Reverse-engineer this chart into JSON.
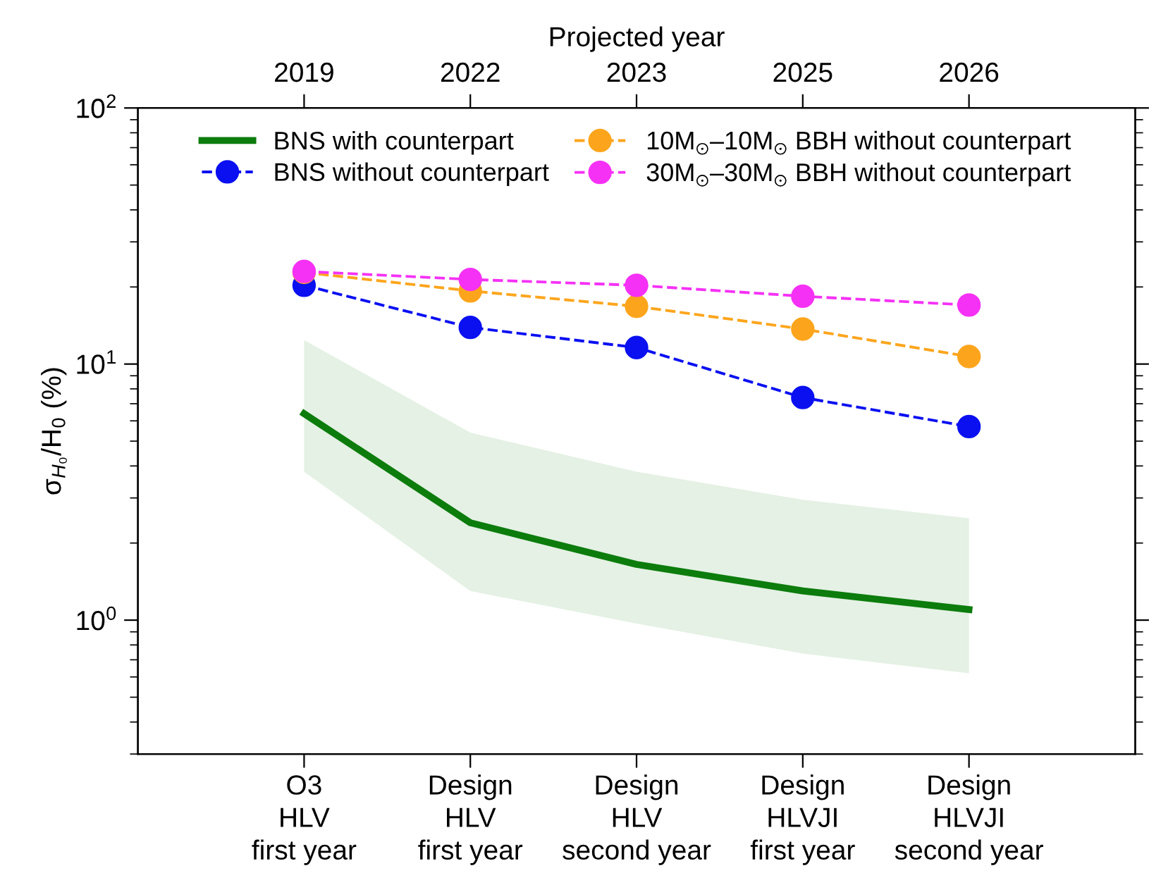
{
  "chart_data": {
    "type": "line",
    "categories": [
      "O3\nHLV\nfirst year",
      "Design\nHLV\nfirst year",
      "Design\nHLV\nsecond year",
      "Design\nHLVJI\nfirst year",
      "Design\nHLVJI\nsecond year"
    ],
    "x2label": "Projected year",
    "annotations": [
      "2019",
      "2022",
      "2023",
      "2025",
      "2026"
    ],
    "ylabel": "σ$_{H₀}$/H$_{0}$ (%)",
    "log": "y",
    "ylim": [
      0.3,
      100
    ],
    "yticks": [
      {
        "value": 1,
        "label": "10$^{0}$"
      },
      {
        "value": 10,
        "label": "10$^{1}$"
      },
      {
        "value": 100,
        "label": "10$^{2}$"
      }
    ],
    "grid": false,
    "legend": "top",
    "series": [
      {
        "name": "BNS with counterpart",
        "color": "#0c7c0c",
        "marker": "none",
        "line_style": "solid",
        "values": [
          6.4,
          2.4,
          1.65,
          1.3,
          1.1
        ],
        "lower": [
          3.8,
          1.3,
          0.97,
          0.74,
          0.62
        ],
        "upper": [
          12.4,
          5.4,
          3.8,
          2.95,
          2.5
        ]
      },
      {
        "name": "BNS without counterpart",
        "color": "#0a10f0",
        "marker": "circle",
        "line_style": "dashed",
        "values": [
          20.3,
          13.9,
          11.6,
          7.4,
          5.7
        ]
      },
      {
        "name": "10M$_{⊙}$–10M$_{⊙}$ BBH without counterpart",
        "color": "#fca51c",
        "marker": "circle",
        "line_style": "dashed",
        "values": [
          22.8,
          19.3,
          16.8,
          13.7,
          10.7
        ]
      },
      {
        "name": "30M$_{⊙}$–30M$_{⊙}$ BBH without counterpart",
        "color": "#f531f5",
        "marker": "circle",
        "line_style": "dashed",
        "values": [
          23.0,
          21.4,
          20.3,
          18.4,
          17.0
        ]
      }
    ]
  }
}
